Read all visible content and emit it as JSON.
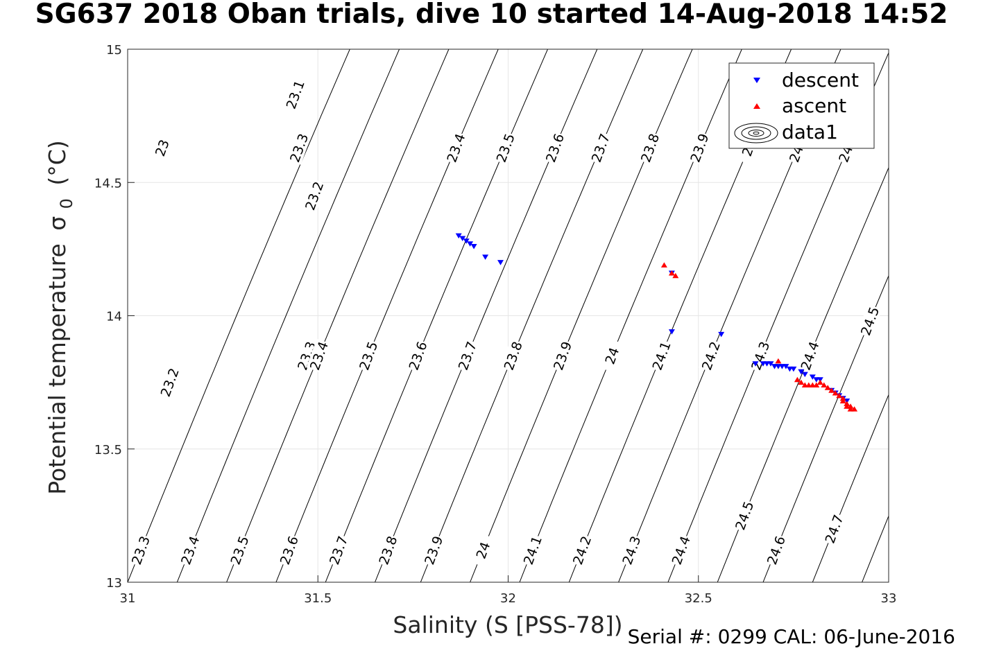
{
  "chart_data": {
    "type": "scatter",
    "title": "SG637 2018 Oban trials, dive 10 started 14-Aug-2018 14:52",
    "xlabel": "Salinity (S [PSS-78])",
    "ylabel": "Potential temperature",
    "ylabel_sigma": "σ",
    "ylabel_sigma_sub": "0",
    "ylabel_unit": "(°C)",
    "xlim": [
      31,
      33
    ],
    "ylim": [
      13,
      15
    ],
    "xticks": [
      "31",
      "31.5",
      "32",
      "32.5",
      "33"
    ],
    "yticks": [
      "13",
      "13.5",
      "14",
      "14.5",
      "15"
    ],
    "grid": true,
    "legend_position": "top-right",
    "series": [
      {
        "name": "descent",
        "marker": "triangle-down",
        "color": "#0000ff",
        "points": [
          [
            31.87,
            14.3
          ],
          [
            31.88,
            14.29
          ],
          [
            31.89,
            14.28
          ],
          [
            31.9,
            14.27
          ],
          [
            31.91,
            14.26
          ],
          [
            31.94,
            14.22
          ],
          [
            31.98,
            14.2
          ],
          [
            32.43,
            14.16
          ],
          [
            32.43,
            13.94
          ],
          [
            32.56,
            13.93
          ],
          [
            32.65,
            13.82
          ],
          [
            32.67,
            13.82
          ],
          [
            32.68,
            13.82
          ],
          [
            32.69,
            13.82
          ],
          [
            32.7,
            13.81
          ],
          [
            32.71,
            13.81
          ],
          [
            32.72,
            13.81
          ],
          [
            32.73,
            13.81
          ],
          [
            32.74,
            13.8
          ],
          [
            32.75,
            13.8
          ],
          [
            32.77,
            13.79
          ],
          [
            32.78,
            13.78
          ],
          [
            32.8,
            13.77
          ],
          [
            32.81,
            13.76
          ],
          [
            32.82,
            13.76
          ],
          [
            32.85,
            13.72
          ],
          [
            32.86,
            13.71
          ],
          [
            32.87,
            13.7
          ],
          [
            32.88,
            13.69
          ],
          [
            32.89,
            13.68
          ]
        ]
      },
      {
        "name": "ascent",
        "marker": "triangle-up",
        "color": "#ff0000",
        "points": [
          [
            32.41,
            14.19
          ],
          [
            32.43,
            14.16
          ],
          [
            32.44,
            14.15
          ],
          [
            32.71,
            13.83
          ],
          [
            32.76,
            13.76
          ],
          [
            32.77,
            13.75
          ],
          [
            32.78,
            13.74
          ],
          [
            32.79,
            13.74
          ],
          [
            32.8,
            13.74
          ],
          [
            32.81,
            13.74
          ],
          [
            32.82,
            13.75
          ],
          [
            32.83,
            13.74
          ],
          [
            32.84,
            13.73
          ],
          [
            32.85,
            13.72
          ],
          [
            32.86,
            13.71
          ],
          [
            32.87,
            13.7
          ],
          [
            32.88,
            13.69
          ],
          [
            32.88,
            13.68
          ],
          [
            32.89,
            13.67
          ],
          [
            32.89,
            13.66
          ],
          [
            32.9,
            13.66
          ],
          [
            32.9,
            13.65
          ],
          [
            32.91,
            13.65
          ]
        ]
      }
    ],
    "contours": [
      {
        "x_at_ymin": 31.0,
        "labels": [
          {
            "text": "23.3",
            "y": 13.12
          },
          {
            "text": "23.2",
            "y": 13.75
          },
          {
            "text": "23",
            "y": 14.63
          }
        ]
      },
      {
        "x_at_ymin": 31.13,
        "labels": [
          {
            "text": "23.4",
            "y": 13.12
          },
          {
            "text": "23.3",
            "y": 13.85
          },
          {
            "text": "23.2",
            "y": 14.45
          },
          {
            "text": "23.1",
            "y": 14.83
          }
        ]
      },
      {
        "x_at_ymin": 31.26,
        "labels": [
          {
            "text": "23.5",
            "y": 13.12
          },
          {
            "text": "23.4",
            "y": 13.85
          },
          {
            "text": "23.3",
            "y": 14.63
          }
        ]
      },
      {
        "x_at_ymin": 31.39,
        "labels": [
          {
            "text": "23.6",
            "y": 13.12
          },
          {
            "text": "23.5",
            "y": 13.85
          },
          {
            "text": "23.4",
            "y": 14.63
          }
        ]
      },
      {
        "x_at_ymin": 31.52,
        "labels": [
          {
            "text": "23.7",
            "y": 13.12
          },
          {
            "text": "23.6",
            "y": 13.85
          },
          {
            "text": "23.5",
            "y": 14.63
          }
        ]
      },
      {
        "x_at_ymin": 31.65,
        "labels": [
          {
            "text": "23.8",
            "y": 13.12
          },
          {
            "text": "23.7",
            "y": 13.85
          },
          {
            "text": "23.6",
            "y": 14.63
          }
        ]
      },
      {
        "x_at_ymin": 31.77,
        "labels": [
          {
            "text": "23.9",
            "y": 13.12
          },
          {
            "text": "23.8",
            "y": 13.85
          },
          {
            "text": "23.7",
            "y": 14.63
          }
        ]
      },
      {
        "x_at_ymin": 31.9,
        "labels": [
          {
            "text": "24",
            "y": 13.12
          },
          {
            "text": "23.9",
            "y": 13.85
          },
          {
            "text": "23.8",
            "y": 14.63
          }
        ]
      },
      {
        "x_at_ymin": 32.03,
        "labels": [
          {
            "text": "24.1",
            "y": 13.12
          },
          {
            "text": "24",
            "y": 13.85
          },
          {
            "text": "23.9",
            "y": 14.63
          }
        ]
      },
      {
        "x_at_ymin": 32.16,
        "labels": [
          {
            "text": "24.2",
            "y": 13.12
          },
          {
            "text": "24.1",
            "y": 13.85
          },
          {
            "text": "24",
            "y": 14.63
          }
        ]
      },
      {
        "x_at_ymin": 32.29,
        "labels": [
          {
            "text": "24.3",
            "y": 13.12
          },
          {
            "text": "24.2",
            "y": 13.85
          },
          {
            "text": "24.1",
            "y": 14.63
          }
        ]
      },
      {
        "x_at_ymin": 32.42,
        "labels": [
          {
            "text": "24.4",
            "y": 13.12
          },
          {
            "text": "24.3",
            "y": 13.85
          },
          {
            "text": "24.2",
            "y": 14.63
          }
        ]
      },
      {
        "x_at_ymin": 32.55,
        "labels": [
          {
            "text": "24.5",
            "y": 13.25
          },
          {
            "text": "24.4",
            "y": 13.85
          },
          {
            "text": "24.3",
            "y": 14.63
          }
        ]
      },
      {
        "x_at_ymin": 32.67,
        "labels": [
          {
            "text": "24.6",
            "y": 13.12
          },
          {
            "text": "24.5",
            "y": 13.98
          },
          {
            "text": "24.4",
            "y": 14.63
          }
        ]
      },
      {
        "x_at_ymin": 32.8,
        "labels": [
          {
            "text": "24.7",
            "y": 13.2
          },
          {
            "text": "24.6",
            "y": 13.85
          },
          {
            "text": "24.5",
            "y": 14.63
          }
        ]
      },
      {
        "x_at_ymin": 32.93,
        "labels": []
      }
    ],
    "contour_slope_s_per_degC": 0.28,
    "contour_label_fixes": [
      {
        "text": "23",
        "x": 31.09,
        "y": 14.63
      },
      {
        "text": "23.1",
        "x": 31.44,
        "y": 14.83
      },
      {
        "text": "23.2",
        "x": 31.49,
        "y": 14.45
      },
      {
        "text": "23.2",
        "x": 31.11,
        "y": 13.75
      },
      {
        "text": "23.3",
        "x": 31.45,
        "y": 14.63
      },
      {
        "text": "23.3",
        "x": 31.47,
        "y": 13.85
      }
    ],
    "legend": {
      "entries": [
        {
          "label": "descent",
          "marker": "triangle-down",
          "color": "#0000ff"
        },
        {
          "label": "ascent",
          "marker": "triangle-up",
          "color": "#ff0000"
        },
        {
          "label": "data1",
          "marker": "contour",
          "color": "#000000"
        }
      ]
    },
    "annotation": "Serial #: 0299 CAL: 06-June-2016"
  }
}
